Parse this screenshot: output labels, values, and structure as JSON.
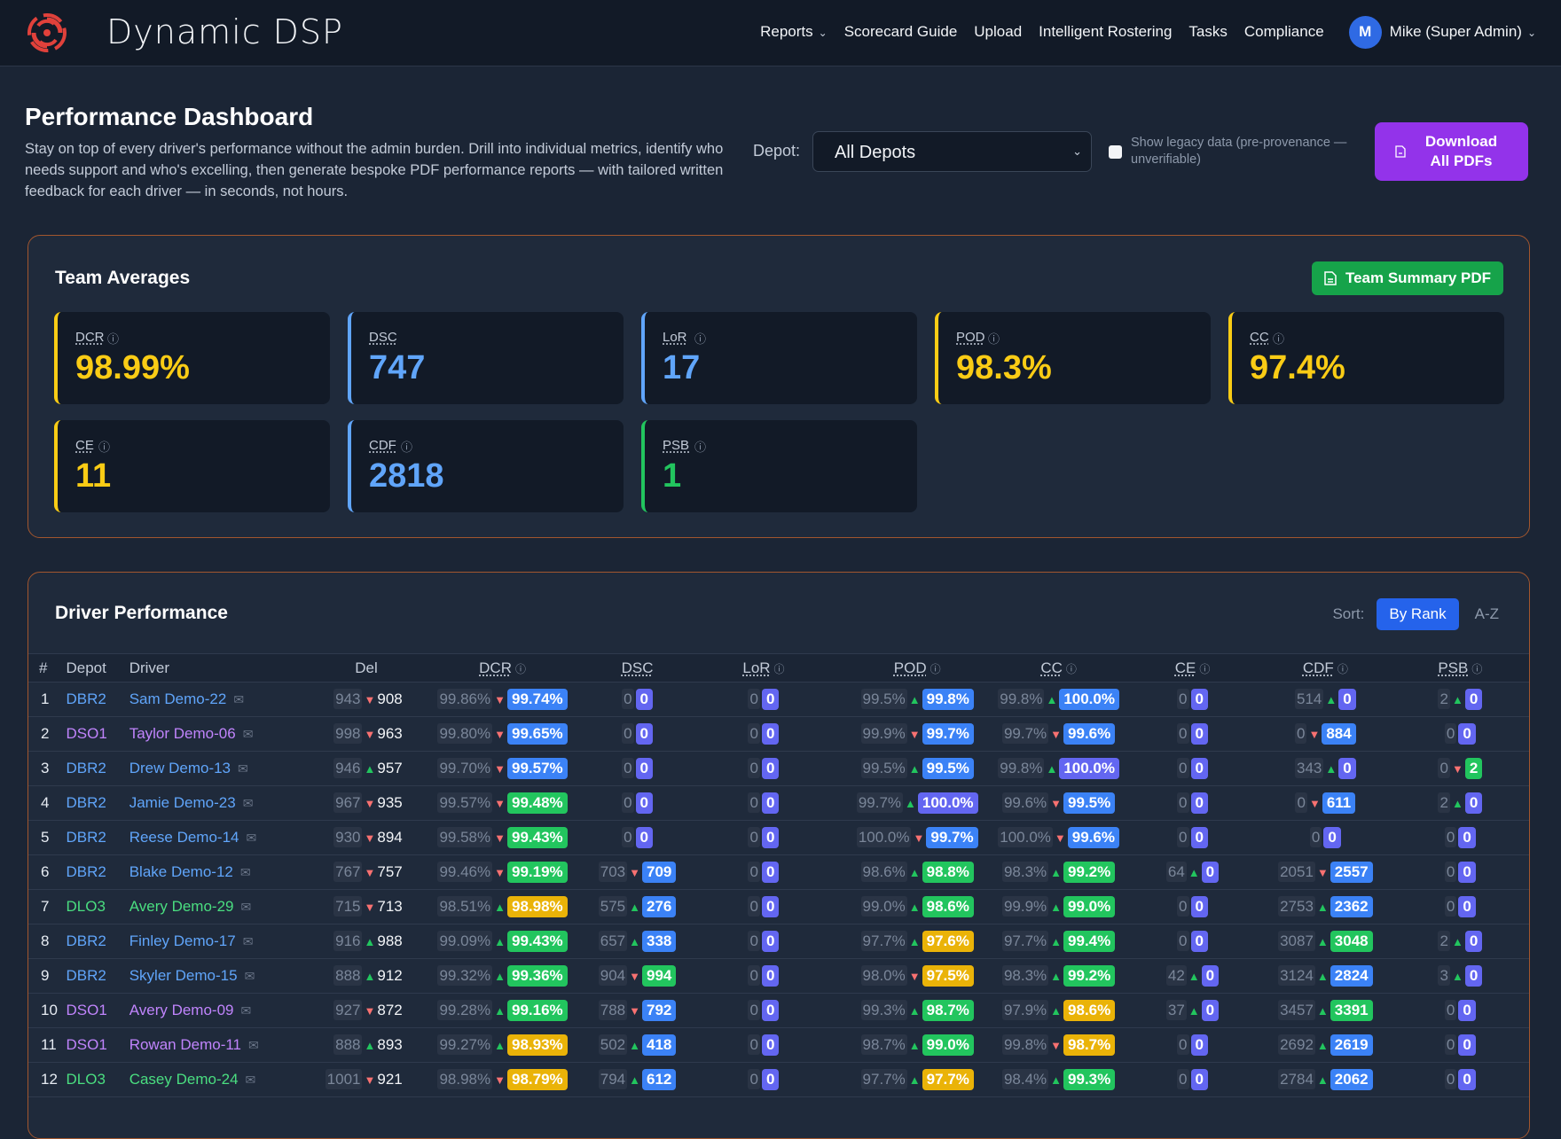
{
  "brand": {
    "name": "Dynamic DSP"
  },
  "nav": {
    "reports": "Reports",
    "scorecard": "Scorecard Guide",
    "upload": "Upload",
    "rostering": "Intelligent Rostering",
    "tasks": "Tasks",
    "compliance": "Compliance",
    "avatar_initial": "M",
    "user": "Mike (Super Admin)"
  },
  "header": {
    "title": "Performance Dashboard",
    "description": "Stay on top of every driver's performance without the admin burden. Drill into individual metrics, identify who needs support and who's excelling, then generate bespoke PDF performance reports — with tailored written feedback for each driver — in seconds, not hours.",
    "depot_label": "Depot:",
    "depot_value": "All Depots",
    "legacy_label": "Show legacy data (pre-provenance — unverifiable)",
    "download_label": "Download All PDFs"
  },
  "team": {
    "title": "Team Averages",
    "pdf_label": "Team Summary PDF",
    "cards": [
      {
        "label": "DCR",
        "value": "98.99%",
        "color": "#facc15",
        "info": true
      },
      {
        "label": "DSC",
        "value": "747",
        "color": "#60a5fa",
        "info": false
      },
      {
        "label": "LoR",
        "value": "17",
        "color": "#60a5fa",
        "info": true
      },
      {
        "label": "POD",
        "value": "98.3%",
        "color": "#facc15",
        "info": true
      },
      {
        "label": "CC",
        "value": "97.4%",
        "color": "#facc15",
        "info": true
      },
      {
        "label": "CE",
        "value": "11",
        "color": "#facc15",
        "info": true
      },
      {
        "label": "CDF",
        "value": "2818",
        "color": "#60a5fa",
        "info": true
      },
      {
        "label": "PSB",
        "value": "1",
        "color": "#22c55e",
        "info": true
      }
    ]
  },
  "drivers": {
    "title": "Driver Performance",
    "sort_label": "Sort:",
    "sort_rank": "By Rank",
    "sort_az": "A-Z",
    "columns": [
      "#",
      "Depot",
      "Driver",
      "Del",
      "DCR",
      "DSC",
      "LoR",
      "POD",
      "CC",
      "CE",
      "CDF",
      "PSB"
    ],
    "depot_colors": {
      "DBR2": "#60a5fa",
      "DSO1": "#c084fc",
      "DLO3": "#4ade80"
    },
    "rows": [
      {
        "rank": "1",
        "depot": "DBR2",
        "driver": "Sam Demo-22",
        "del": [
          "943",
          "d",
          "908"
        ],
        "dcr": [
          "99.86%",
          "d",
          "99.74%",
          "b"
        ],
        "dsc": [
          "0",
          "",
          "0",
          "p"
        ],
        "lor": [
          "0",
          "",
          "0",
          "p"
        ],
        "pod": [
          "99.5%",
          "u",
          "99.8%",
          "b"
        ],
        "cc": [
          "99.8%",
          "u",
          "100.0%",
          "b"
        ],
        "ce": [
          "0",
          "",
          "0",
          "p"
        ],
        "cdf": [
          "514",
          "u",
          "0",
          "p"
        ],
        "psb": [
          "2",
          "u",
          "0",
          "p"
        ]
      },
      {
        "rank": "2",
        "depot": "DSO1",
        "driver": "Taylor Demo-06",
        "del": [
          "998",
          "d",
          "963"
        ],
        "dcr": [
          "99.80%",
          "d",
          "99.65%",
          "b"
        ],
        "dsc": [
          "0",
          "",
          "0",
          "p"
        ],
        "lor": [
          "0",
          "",
          "0",
          "p"
        ],
        "pod": [
          "99.9%",
          "d",
          "99.7%",
          "b"
        ],
        "cc": [
          "99.7%",
          "d",
          "99.6%",
          "b"
        ],
        "ce": [
          "0",
          "",
          "0",
          "p"
        ],
        "cdf": [
          "0",
          "d",
          "884",
          "b"
        ],
        "psb": [
          "0",
          "",
          "0",
          "p"
        ]
      },
      {
        "rank": "3",
        "depot": "DBR2",
        "driver": "Drew Demo-13",
        "del": [
          "946",
          "u",
          "957"
        ],
        "dcr": [
          "99.70%",
          "d",
          "99.57%",
          "b"
        ],
        "dsc": [
          "0",
          "",
          "0",
          "p"
        ],
        "lor": [
          "0",
          "",
          "0",
          "p"
        ],
        "pod": [
          "99.5%",
          "u",
          "99.5%",
          "b"
        ],
        "cc": [
          "99.8%",
          "u",
          "100.0%",
          "p"
        ],
        "ce": [
          "0",
          "",
          "0",
          "p"
        ],
        "cdf": [
          "343",
          "u",
          "0",
          "p"
        ],
        "psb": [
          "0",
          "d",
          "2",
          "g"
        ]
      },
      {
        "rank": "4",
        "depot": "DBR2",
        "driver": "Jamie Demo-23",
        "del": [
          "967",
          "d",
          "935"
        ],
        "dcr": [
          "99.57%",
          "d",
          "99.48%",
          "g"
        ],
        "dsc": [
          "0",
          "",
          "0",
          "p"
        ],
        "lor": [
          "0",
          "",
          "0",
          "p"
        ],
        "pod": [
          "99.7%",
          "u",
          "100.0%",
          "p"
        ],
        "cc": [
          "99.6%",
          "d",
          "99.5%",
          "b"
        ],
        "ce": [
          "0",
          "",
          "0",
          "p"
        ],
        "cdf": [
          "0",
          "d",
          "611",
          "b"
        ],
        "psb": [
          "2",
          "u",
          "0",
          "p"
        ]
      },
      {
        "rank": "5",
        "depot": "DBR2",
        "driver": "Reese Demo-14",
        "del": [
          "930",
          "d",
          "894"
        ],
        "dcr": [
          "99.58%",
          "d",
          "99.43%",
          "g"
        ],
        "dsc": [
          "0",
          "",
          "0",
          "p"
        ],
        "lor": [
          "0",
          "",
          "0",
          "p"
        ],
        "pod": [
          "100.0%",
          "d",
          "99.7%",
          "b"
        ],
        "cc": [
          "100.0%",
          "d",
          "99.6%",
          "b"
        ],
        "ce": [
          "0",
          "",
          "0",
          "p"
        ],
        "cdf": [
          "0",
          "",
          "0",
          "p"
        ],
        "psb": [
          "0",
          "",
          "0",
          "p"
        ]
      },
      {
        "rank": "6",
        "depot": "DBR2",
        "driver": "Blake Demo-12",
        "del": [
          "767",
          "d",
          "757"
        ],
        "dcr": [
          "99.46%",
          "d",
          "99.19%",
          "g"
        ],
        "dsc": [
          "703",
          "d",
          "709",
          "b"
        ],
        "lor": [
          "0",
          "",
          "0",
          "p"
        ],
        "pod": [
          "98.6%",
          "u",
          "98.8%",
          "g"
        ],
        "cc": [
          "98.3%",
          "u",
          "99.2%",
          "g"
        ],
        "ce": [
          "64",
          "u",
          "0",
          "p"
        ],
        "cdf": [
          "2051",
          "d",
          "2557",
          "b"
        ],
        "psb": [
          "0",
          "",
          "0",
          "p"
        ]
      },
      {
        "rank": "7",
        "depot": "DLO3",
        "driver": "Avery Demo-29",
        "del": [
          "715",
          "d",
          "713"
        ],
        "dcr": [
          "98.51%",
          "u",
          "98.98%",
          "y"
        ],
        "dsc": [
          "575",
          "u",
          "276",
          "b"
        ],
        "lor": [
          "0",
          "",
          "0",
          "p"
        ],
        "pod": [
          "99.0%",
          "u",
          "98.6%",
          "g"
        ],
        "cc": [
          "99.9%",
          "u",
          "99.0%",
          "g"
        ],
        "ce": [
          "0",
          "",
          "0",
          "p"
        ],
        "cdf": [
          "2753",
          "u",
          "2362",
          "b"
        ],
        "psb": [
          "0",
          "",
          "0",
          "p"
        ]
      },
      {
        "rank": "8",
        "depot": "DBR2",
        "driver": "Finley Demo-17",
        "del": [
          "916",
          "u",
          "988"
        ],
        "dcr": [
          "99.09%",
          "u",
          "99.43%",
          "g"
        ],
        "dsc": [
          "657",
          "u",
          "338",
          "b"
        ],
        "lor": [
          "0",
          "",
          "0",
          "p"
        ],
        "pod": [
          "97.7%",
          "u",
          "97.6%",
          "y"
        ],
        "cc": [
          "97.7%",
          "u",
          "99.4%",
          "g"
        ],
        "ce": [
          "0",
          "",
          "0",
          "p"
        ],
        "cdf": [
          "3087",
          "u",
          "3048",
          "g"
        ],
        "psb": [
          "2",
          "u",
          "0",
          "p"
        ]
      },
      {
        "rank": "9",
        "depot": "DBR2",
        "driver": "Skyler Demo-15",
        "del": [
          "888",
          "u",
          "912"
        ],
        "dcr": [
          "99.32%",
          "u",
          "99.36%",
          "g"
        ],
        "dsc": [
          "904",
          "d",
          "994",
          "g"
        ],
        "lor": [
          "0",
          "",
          "0",
          "p"
        ],
        "pod": [
          "98.0%",
          "d",
          "97.5%",
          "y"
        ],
        "cc": [
          "98.3%",
          "u",
          "99.2%",
          "g"
        ],
        "ce": [
          "42",
          "u",
          "0",
          "p"
        ],
        "cdf": [
          "3124",
          "u",
          "2824",
          "b"
        ],
        "psb": [
          "3",
          "u",
          "0",
          "p"
        ]
      },
      {
        "rank": "10",
        "depot": "DSO1",
        "driver": "Avery Demo-09",
        "del": [
          "927",
          "d",
          "872"
        ],
        "dcr": [
          "99.28%",
          "u",
          "99.16%",
          "g"
        ],
        "dsc": [
          "788",
          "d",
          "792",
          "b"
        ],
        "lor": [
          "0",
          "",
          "0",
          "p"
        ],
        "pod": [
          "99.3%",
          "u",
          "98.7%",
          "g"
        ],
        "cc": [
          "97.9%",
          "u",
          "98.6%",
          "y"
        ],
        "ce": [
          "37",
          "u",
          "0",
          "p"
        ],
        "cdf": [
          "3457",
          "u",
          "3391",
          "g"
        ],
        "psb": [
          "0",
          "",
          "0",
          "p"
        ]
      },
      {
        "rank": "11",
        "depot": "DSO1",
        "driver": "Rowan Demo-11",
        "del": [
          "888",
          "u",
          "893"
        ],
        "dcr": [
          "99.27%",
          "u",
          "98.93%",
          "y"
        ],
        "dsc": [
          "502",
          "u",
          "418",
          "b"
        ],
        "lor": [
          "0",
          "",
          "0",
          "p"
        ],
        "pod": [
          "98.7%",
          "u",
          "99.0%",
          "g"
        ],
        "cc": [
          "99.8%",
          "d",
          "98.7%",
          "y"
        ],
        "ce": [
          "0",
          "",
          "0",
          "p"
        ],
        "cdf": [
          "2692",
          "u",
          "2619",
          "b"
        ],
        "psb": [
          "0",
          "",
          "0",
          "p"
        ]
      },
      {
        "rank": "12",
        "depot": "DLO3",
        "driver": "Casey Demo-24",
        "del": [
          "1001",
          "d",
          "921"
        ],
        "dcr": [
          "98.98%",
          "d",
          "98.79%",
          "y"
        ],
        "dsc": [
          "794",
          "u",
          "612",
          "b"
        ],
        "lor": [
          "0",
          "",
          "0",
          "p"
        ],
        "pod": [
          "97.7%",
          "u",
          "97.7%",
          "y"
        ],
        "cc": [
          "98.4%",
          "u",
          "99.3%",
          "g"
        ],
        "ce": [
          "0",
          "",
          "0",
          "p"
        ],
        "cdf": [
          "2784",
          "u",
          "2062",
          "b"
        ],
        "psb": [
          "0",
          "",
          "0",
          "p"
        ]
      }
    ]
  }
}
